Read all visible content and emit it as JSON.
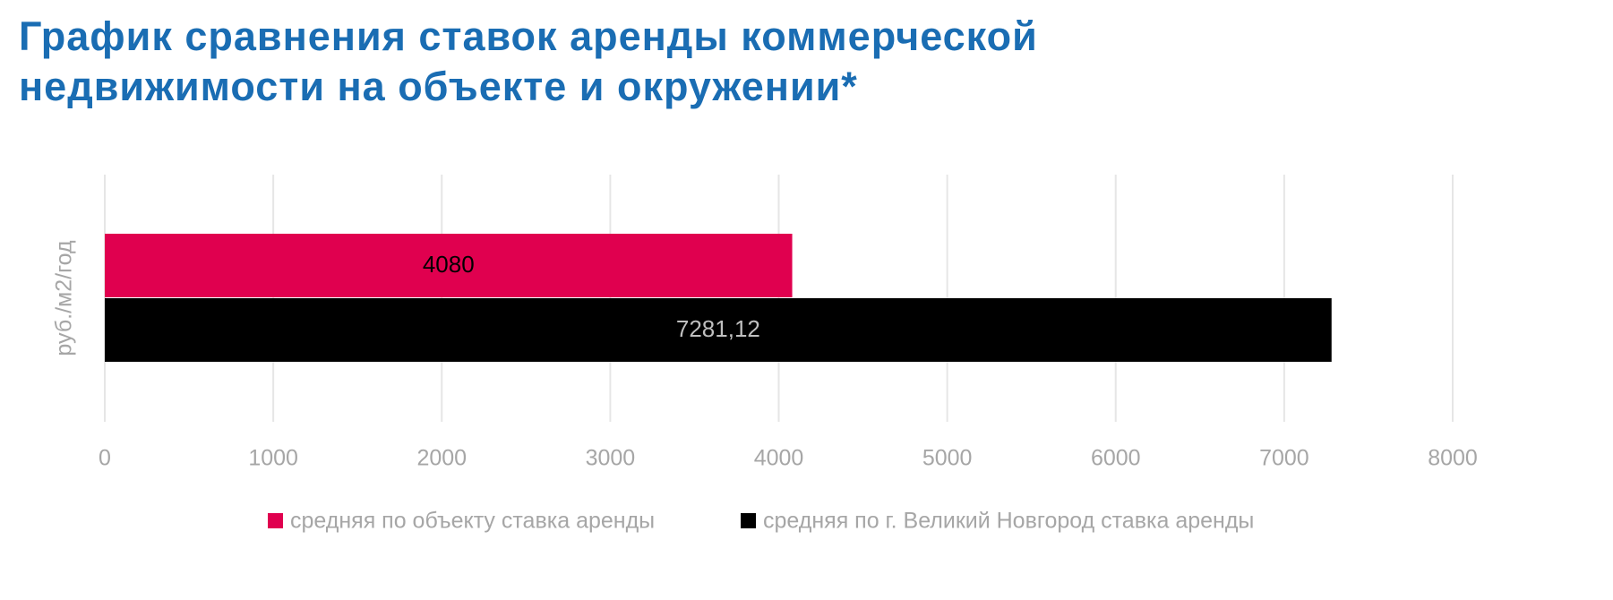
{
  "chart_data": {
    "type": "hbar",
    "title": [
      "График сравнения ставок аренды коммерческой",
      "недвижимости на объекте и окружении*"
    ],
    "y_label": "руб./м2/год",
    "categories": [
      null
    ],
    "series": [
      {
        "name": "средняя по объекту ставка аренды",
        "color": "#e0004f",
        "label_color": "#000000",
        "values": [
          4080
        ]
      },
      {
        "name": "средняя по г. Великий Новгород ставка аренды",
        "color": "#000000",
        "label_color": "#bfbfbf",
        "values": [
          7281.12
        ],
        "value_labels": [
          "7281,12"
        ]
      }
    ],
    "xlim": [
      0,
      8000
    ],
    "xticks": [
      0,
      1000,
      2000,
      3000,
      4000,
      5000,
      6000,
      7000,
      8000
    ],
    "grid": true,
    "legend": "bottom"
  }
}
